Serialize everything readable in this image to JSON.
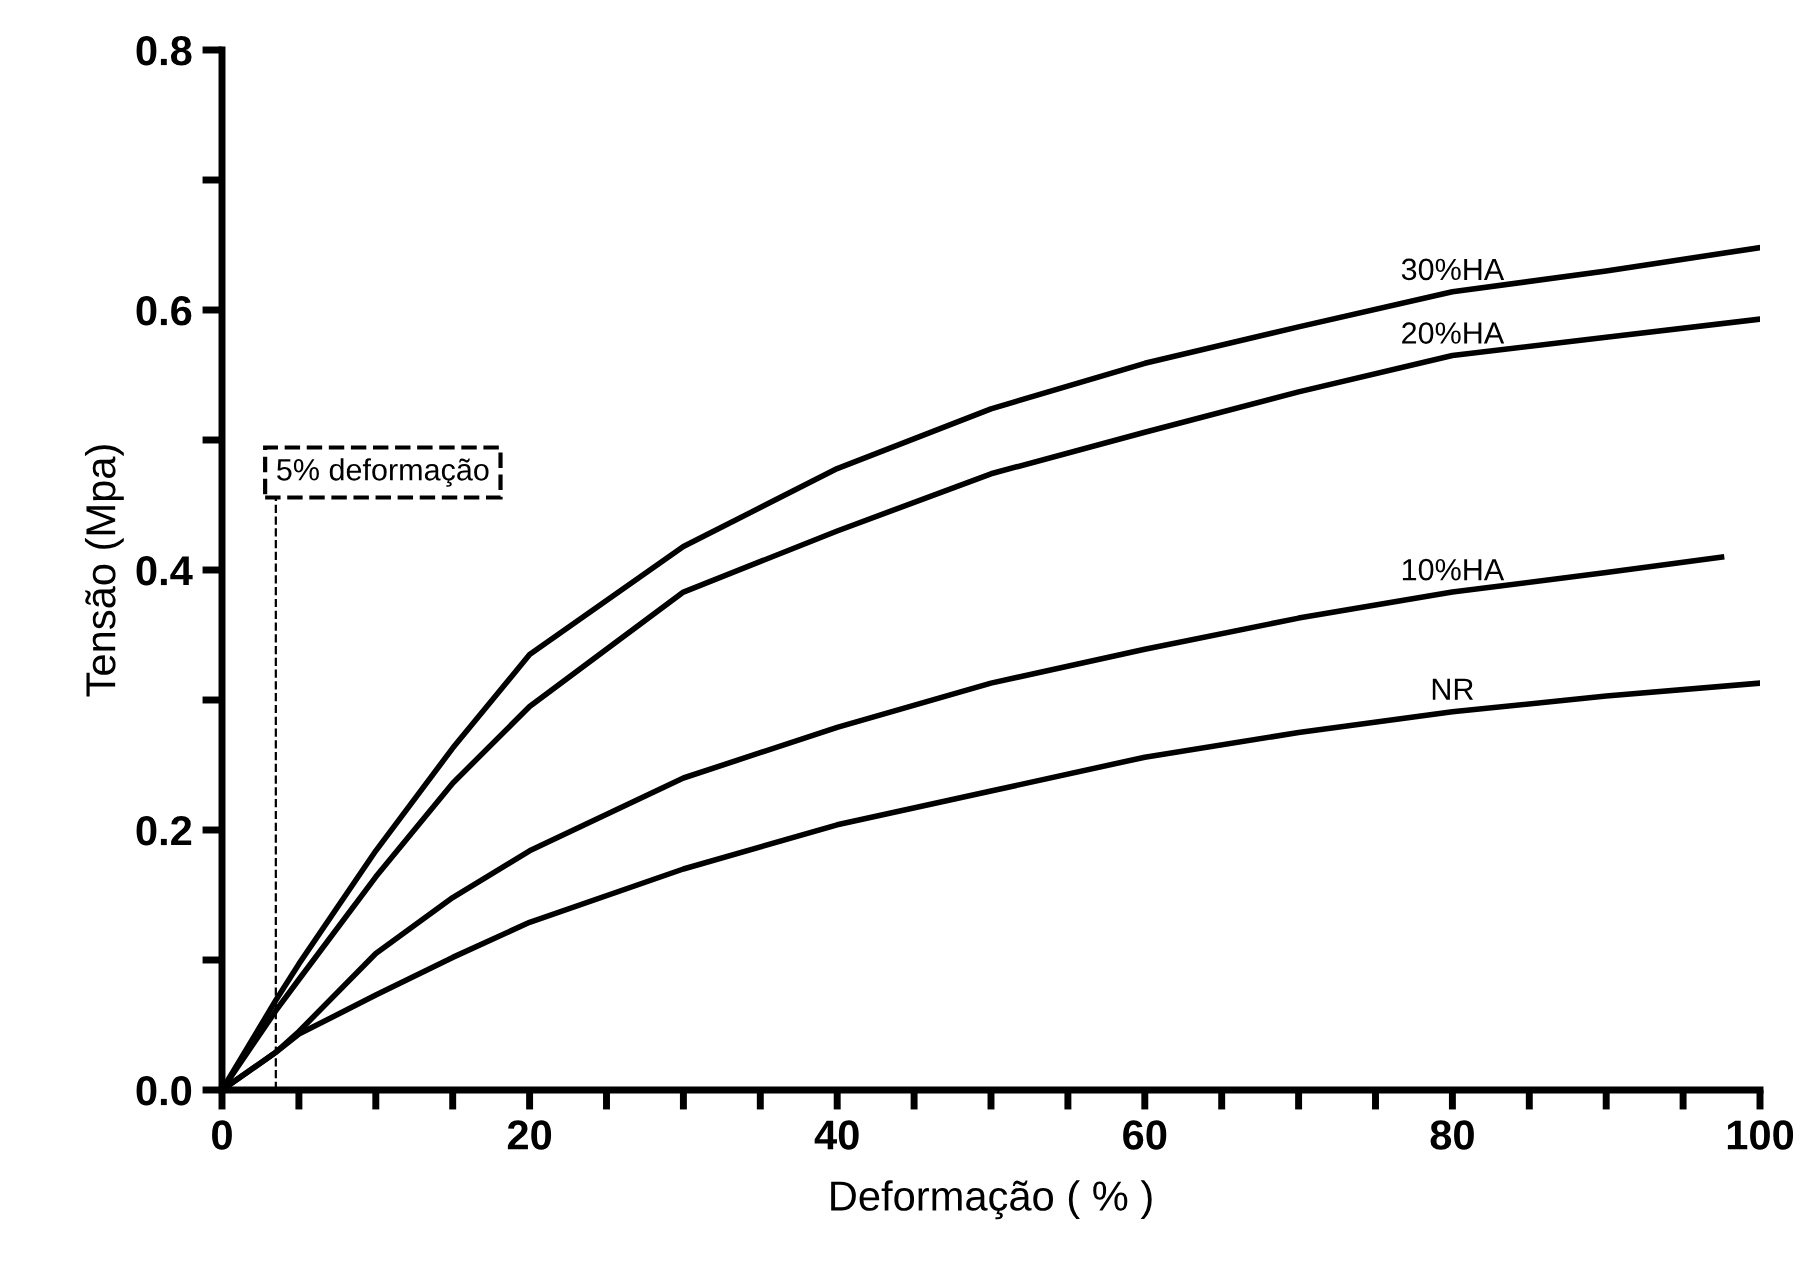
{
  "chart_data": {
    "type": "line",
    "xlabel": "Deformação ( % )",
    "ylabel": "Tensão (Mpa)",
    "xlim": [
      0,
      100
    ],
    "ylim": [
      0,
      0.8
    ],
    "xticks": [
      0,
      {
        "value": 5,
        "label": null
      },
      {
        "value": 10,
        "label": null
      },
      {
        "value": 15,
        "label": null
      },
      20,
      {
        "value": 25,
        "label": null
      },
      {
        "value": 30,
        "label": null
      },
      {
        "value": 35,
        "label": null
      },
      40,
      {
        "value": 45,
        "label": null
      },
      {
        "value": 50,
        "label": null
      },
      {
        "value": 55,
        "label": null
      },
      60,
      {
        "value": 65,
        "label": null
      },
      {
        "value": 70,
        "label": null
      },
      {
        "value": 75,
        "label": null
      },
      80,
      {
        "value": 85,
        "label": null
      },
      {
        "value": 90,
        "label": null
      },
      {
        "value": 95,
        "label": null
      },
      100
    ],
    "yticks": [
      {
        "value": 0,
        "label": "0.0"
      },
      {
        "value": 0.1,
        "label": null
      },
      0.2,
      {
        "value": 0.3,
        "label": null
      },
      0.4,
      {
        "value": 0.5,
        "label": null
      },
      0.6,
      {
        "value": 0.7,
        "label": null
      },
      0.8
    ],
    "grid": false,
    "legend": false,
    "marker": "none",
    "line_style": "solid",
    "x": [
      0,
      3.5,
      5,
      10,
      15,
      20,
      30,
      40,
      50,
      60,
      70,
      80,
      90,
      100
    ],
    "series": [
      {
        "name": "30%HA",
        "color": "#000000",
        "values": [
          0,
          0.069,
          0.097,
          0.184,
          0.263,
          0.335,
          0.418,
          0.478,
          0.524,
          0.559,
          0.587,
          0.614,
          0.63,
          0.648
        ]
      },
      {
        "name": "20%HA",
        "color": "#000000",
        "values": [
          0,
          0.061,
          0.085,
          0.164,
          0.236,
          0.295,
          0.383,
          0.43,
          0.474,
          0.506,
          0.537,
          0.565,
          0.579,
          0.593
        ]
      },
      {
        "name": "10%HA",
        "color": "#000000",
        "x": [
          0,
          3.5,
          5,
          10,
          15,
          20,
          30,
          40,
          50,
          60,
          70,
          80,
          90,
          97.5
        ],
        "values": [
          0,
          0.029,
          0.045,
          0.105,
          0.148,
          0.184,
          0.24,
          0.279,
          0.313,
          0.339,
          0.363,
          0.383,
          0.398,
          0.41
        ]
      },
      {
        "name": "NR",
        "color": "#000000",
        "values": [
          0,
          0.029,
          0.043,
          0.073,
          0.102,
          0.129,
          0.17,
          0.204,
          0.23,
          0.256,
          0.275,
          0.291,
          0.303,
          0.313
        ]
      }
    ],
    "ref_lines": [
      {
        "axis": "x",
        "value": 3.5,
        "label": "5% deformação",
        "color": "#000000",
        "line_style": "dashed"
      }
    ]
  }
}
